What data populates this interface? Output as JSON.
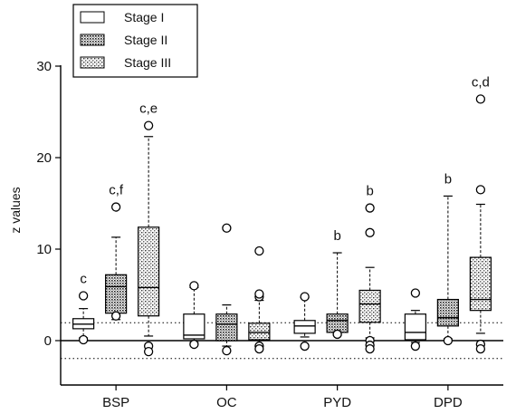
{
  "chart_data": {
    "type": "box",
    "title": "",
    "xlabel": "",
    "ylabel": "z values",
    "ylim": [
      -5,
      30
    ],
    "yticks": [
      0,
      10,
      20,
      30
    ],
    "reference_lines": [
      0,
      1.96,
      -1.96
    ],
    "categories": [
      "BSP",
      "OC",
      "PYD",
      "DPD"
    ],
    "legend_position": "top-left",
    "series": [
      {
        "name": "Stage I",
        "pattern": "plain",
        "boxes": [
          {
            "category": "BSP",
            "q1": 1.3,
            "median": 1.8,
            "q3": 2.4,
            "whisker_low": 0.3,
            "whisker_high": 3.5,
            "outliers": [
              0.1,
              4.9
            ],
            "annotation": "c"
          },
          {
            "category": "OC",
            "q1": 0.2,
            "median": 0.6,
            "q3": 2.9,
            "whisker_low": -0.2,
            "whisker_high": 5.8,
            "outliers": [
              -0.4,
              6.0
            ],
            "annotation": ""
          },
          {
            "category": "PYD",
            "q1": 0.8,
            "median": 1.6,
            "q3": 2.2,
            "whisker_low": 0.4,
            "whisker_high": 4.7,
            "outliers": [
              -0.6,
              4.8
            ],
            "annotation": ""
          },
          {
            "category": "DPD",
            "q1": 0.1,
            "median": 0.9,
            "q3": 2.9,
            "whisker_low": -0.2,
            "whisker_high": 3.3,
            "outliers": [
              -0.6,
              5.2
            ],
            "annotation": ""
          }
        ]
      },
      {
        "name": "Stage II",
        "pattern": "dense-dots",
        "boxes": [
          {
            "category": "BSP",
            "q1": 3.0,
            "median": 5.9,
            "q3": 7.2,
            "whisker_low": 2.3,
            "whisker_high": 11.3,
            "outliers": [
              2.7,
              14.6
            ],
            "annotation": "c,f"
          },
          {
            "category": "OC",
            "q1": 0.0,
            "median": 1.8,
            "q3": 2.9,
            "whisker_low": -0.6,
            "whisker_high": 3.9,
            "outliers": [
              -1.1,
              12.3
            ],
            "annotation": ""
          },
          {
            "category": "PYD",
            "q1": 0.9,
            "median": 2.2,
            "q3": 2.9,
            "whisker_low": 0.6,
            "whisker_high": 9.6,
            "outliers": [
              0.7
            ],
            "annotation": "b"
          },
          {
            "category": "DPD",
            "q1": 1.6,
            "median": 2.5,
            "q3": 4.5,
            "whisker_low": 0.2,
            "whisker_high": 15.8,
            "outliers": [
              0.0
            ],
            "annotation": "b"
          }
        ]
      },
      {
        "name": "Stage III",
        "pattern": "sparse-dots",
        "boxes": [
          {
            "category": "BSP",
            "q1": 2.7,
            "median": 5.8,
            "q3": 12.4,
            "whisker_low": 0.5,
            "whisker_high": 22.3,
            "outliers": [
              -0.6,
              -1.2,
              23.5
            ],
            "annotation": "c,e"
          },
          {
            "category": "OC",
            "q1": 0.1,
            "median": 0.9,
            "q3": 1.9,
            "whisker_low": -0.6,
            "whisker_high": 4.4,
            "outliers": [
              -0.6,
              -0.9,
              4.8,
              5.1,
              9.8
            ],
            "annotation": ""
          },
          {
            "category": "PYD",
            "q1": 2.0,
            "median": 4.0,
            "q3": 5.5,
            "whisker_low": 0.3,
            "whisker_high": 8.0,
            "outliers": [
              0.0,
              -0.5,
              -0.9,
              11.8,
              14.5
            ],
            "annotation": "b"
          },
          {
            "category": "DPD",
            "q1": 3.3,
            "median": 4.5,
            "q3": 9.1,
            "whisker_low": 0.8,
            "whisker_high": 14.9,
            "outliers": [
              -0.4,
              -0.9,
              16.5,
              26.4
            ],
            "annotation": "c,d"
          }
        ]
      }
    ]
  }
}
